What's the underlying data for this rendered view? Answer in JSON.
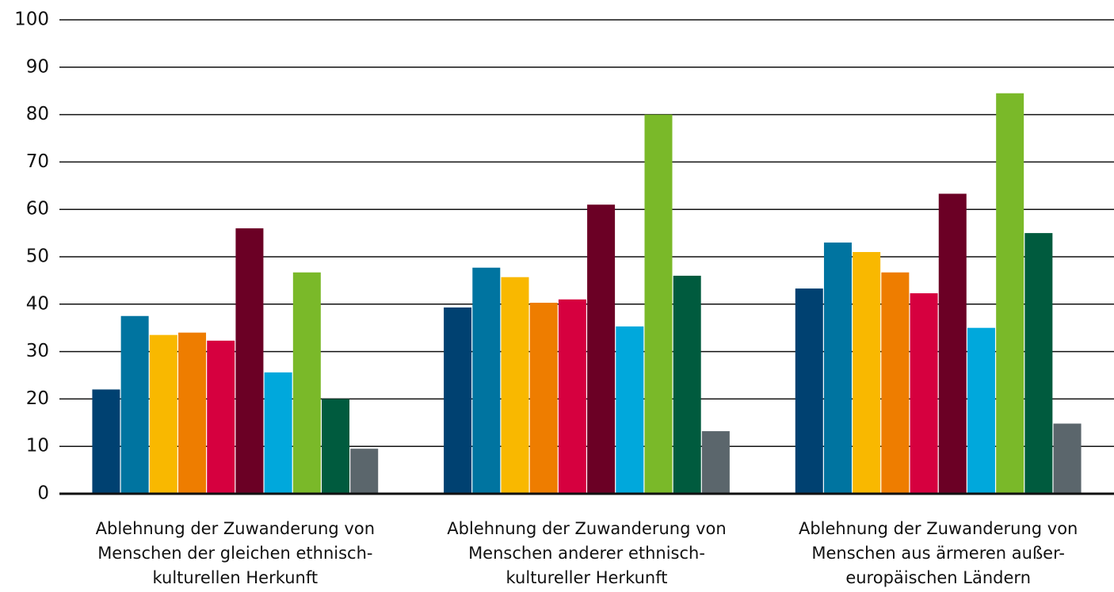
{
  "chart_data": {
    "type": "bar",
    "categories": [
      "Ablehnung der Zuwanderung von\nMenschen der gleichen ethnisch-\nkulturellen Herkunft",
      "Ablehnung der Zuwanderung von\nMenschen anderer ethnisch-\nkultureller Herkunft",
      "Ablehnung der Zuwanderung von\nMenschen aus ärmeren außer-\neuropäischen Ländern"
    ],
    "series": [
      {
        "color": "#004171",
        "values": [
          22,
          39.3,
          43.3
        ]
      },
      {
        "color": "#0074a0",
        "values": [
          37.5,
          47.7,
          53
        ]
      },
      {
        "color": "#f9b800",
        "values": [
          33.5,
          45.7,
          51
        ]
      },
      {
        "color": "#ee7d00",
        "values": [
          34,
          40.3,
          46.7
        ]
      },
      {
        "color": "#d6003f",
        "values": [
          32.3,
          41,
          42.3
        ]
      },
      {
        "color": "#6b0025",
        "values": [
          56,
          61,
          63.3
        ]
      },
      {
        "color": "#00a8dc",
        "values": [
          25.6,
          35.3,
          35
        ]
      },
      {
        "color": "#7ab929",
        "values": [
          46.7,
          80,
          84.5
        ]
      },
      {
        "color": "#005b3e",
        "values": [
          20,
          46,
          55
        ]
      },
      {
        "color": "#5b666c",
        "values": [
          9.5,
          13.2,
          14.8
        ]
      }
    ],
    "ylim": [
      0,
      100
    ],
    "yticks": [
      0,
      10,
      20,
      30,
      40,
      50,
      60,
      70,
      80,
      90,
      100
    ],
    "grid": true
  }
}
